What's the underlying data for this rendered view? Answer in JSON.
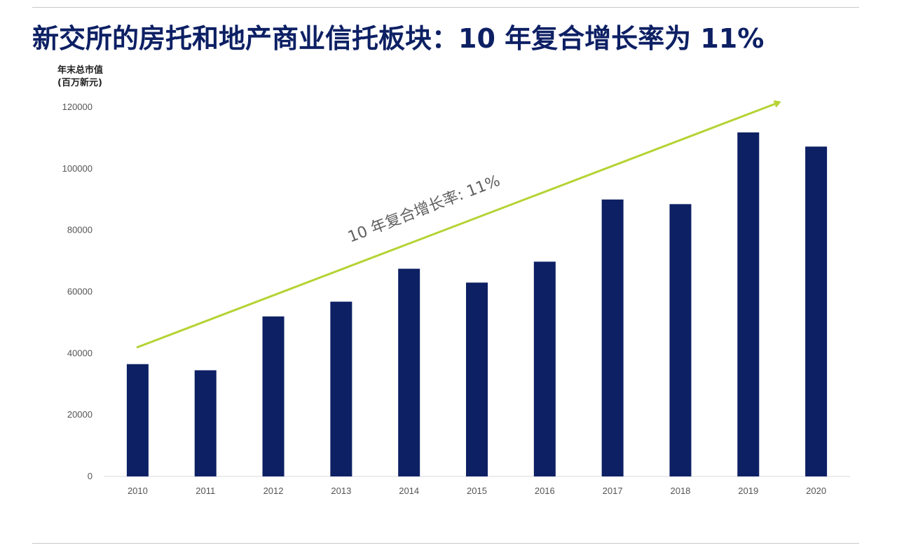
{
  "title": "新交所的房托和地产商业信托板块：10 年复合增长率为 11%",
  "colors": {
    "bar": "#0d2064",
    "trend": "#b5d334",
    "title": "#0d2064"
  },
  "chart_data": {
    "type": "bar",
    "ylabel_line1": "年末总市值",
    "ylabel_line2": "(百万新元)",
    "categories": [
      "2010",
      "2011",
      "2012",
      "2013",
      "2014",
      "2015",
      "2016",
      "2017",
      "2018",
      "2019",
      "2020"
    ],
    "values": [
      36500,
      34500,
      52000,
      56800,
      67500,
      63000,
      69800,
      90000,
      88500,
      111800,
      107200
    ],
    "ylim": [
      0,
      120000
    ],
    "yticks": [
      "0",
      "20000",
      "40000",
      "60000",
      "80000",
      "100000",
      "120000"
    ],
    "grid": false,
    "annotation": "10 年复合增长率: 11%"
  }
}
